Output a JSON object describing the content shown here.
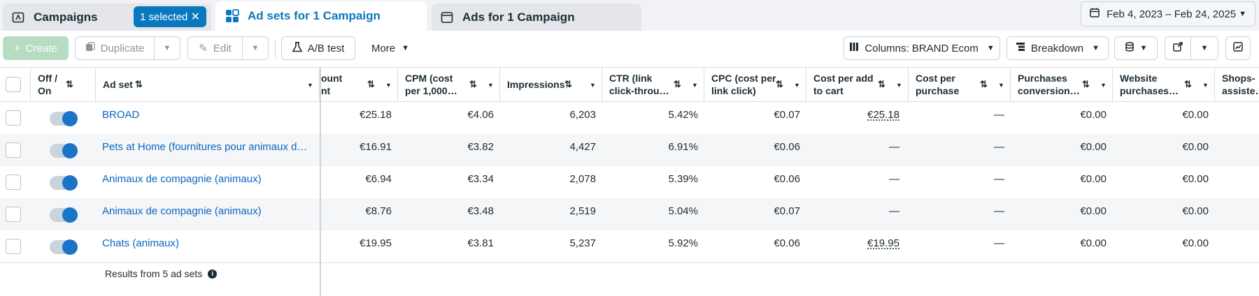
{
  "tabs": {
    "campaigns": "Campaigns",
    "selected_chip": "1 selected",
    "adsets": "Ad sets for 1 Campaign",
    "ads": "Ads for 1 Campaign"
  },
  "date_range": "Feb 4, 2023 – Feb 24, 2025",
  "toolbar": {
    "create": "Create",
    "duplicate": "Duplicate",
    "edit": "Edit",
    "ab_test": "A/B test",
    "more": "More",
    "columns": "Columns: BRAND Ecom",
    "breakdown": "Breakdown"
  },
  "table": {
    "headers": {
      "off_on": "Off / On",
      "ad_set": "Ad set",
      "amount_spent": "ount\nnt",
      "cpm": "CPM (cost per 1,000…",
      "impressions": "Impressions",
      "ctr": "CTR (link click-throu…",
      "cpc": "CPC (cost per link click)",
      "cost_add_to_cart": "Cost per add to cart",
      "cost_per_purchase": "Cost per purchase",
      "purchases_conversion": "Purchases conversion…",
      "website_purchases": "Website purchases…",
      "shops_assisted": "Shops-assiste…"
    },
    "rows": [
      {
        "name": "BROAD",
        "spent": "€25.18",
        "cpm": "€4.06",
        "impressions": "6,203",
        "ctr": "5.42%",
        "cpc": "€0.07",
        "cost_atc": "€25.18",
        "cost_purchase": "—",
        "purch_conv": "€0.00",
        "web_purch": "€0.00"
      },
      {
        "name": "Pets at Home (fournitures pour animaux de c...",
        "spent": "€16.91",
        "cpm": "€3.82",
        "impressions": "4,427",
        "ctr": "6.91%",
        "cpc": "€0.06",
        "cost_atc": "—",
        "cost_purchase": "—",
        "purch_conv": "€0.00",
        "web_purch": "€0.00"
      },
      {
        "name": "Animaux de compagnie (animaux)",
        "spent": "€6.94",
        "cpm": "€3.34",
        "impressions": "2,078",
        "ctr": "5.39%",
        "cpc": "€0.06",
        "cost_atc": "—",
        "cost_purchase": "—",
        "purch_conv": "€0.00",
        "web_purch": "€0.00"
      },
      {
        "name": "Animaux de compagnie (animaux)",
        "spent": "€8.76",
        "cpm": "€3.48",
        "impressions": "2,519",
        "ctr": "5.04%",
        "cpc": "€0.07",
        "cost_atc": "—",
        "cost_purchase": "—",
        "purch_conv": "€0.00",
        "web_purch": "€0.00"
      },
      {
        "name": "Chats (animaux)",
        "spent": "€19.95",
        "cpm": "€3.81",
        "impressions": "5,237",
        "ctr": "5.92%",
        "cpc": "€0.06",
        "cost_atc": "€19.95",
        "cost_purchase": "—",
        "purch_conv": "€0.00",
        "web_purch": "€0.00"
      }
    ],
    "results_text": "Results from 5 ad sets"
  },
  "icons": {
    "campaigns": "campaign-folder-icon",
    "adsets": "grid-icon",
    "ads": "ad-window-icon",
    "calendar": "calendar-icon",
    "flask": "flask-icon",
    "columns": "columns-icon",
    "breakdown": "breakdown-icon"
  },
  "colors": {
    "accent": "#0a78be",
    "link": "#0a66c2",
    "toggle_on": "#1a74c7",
    "create_disabled": "#b6dcc3"
  }
}
